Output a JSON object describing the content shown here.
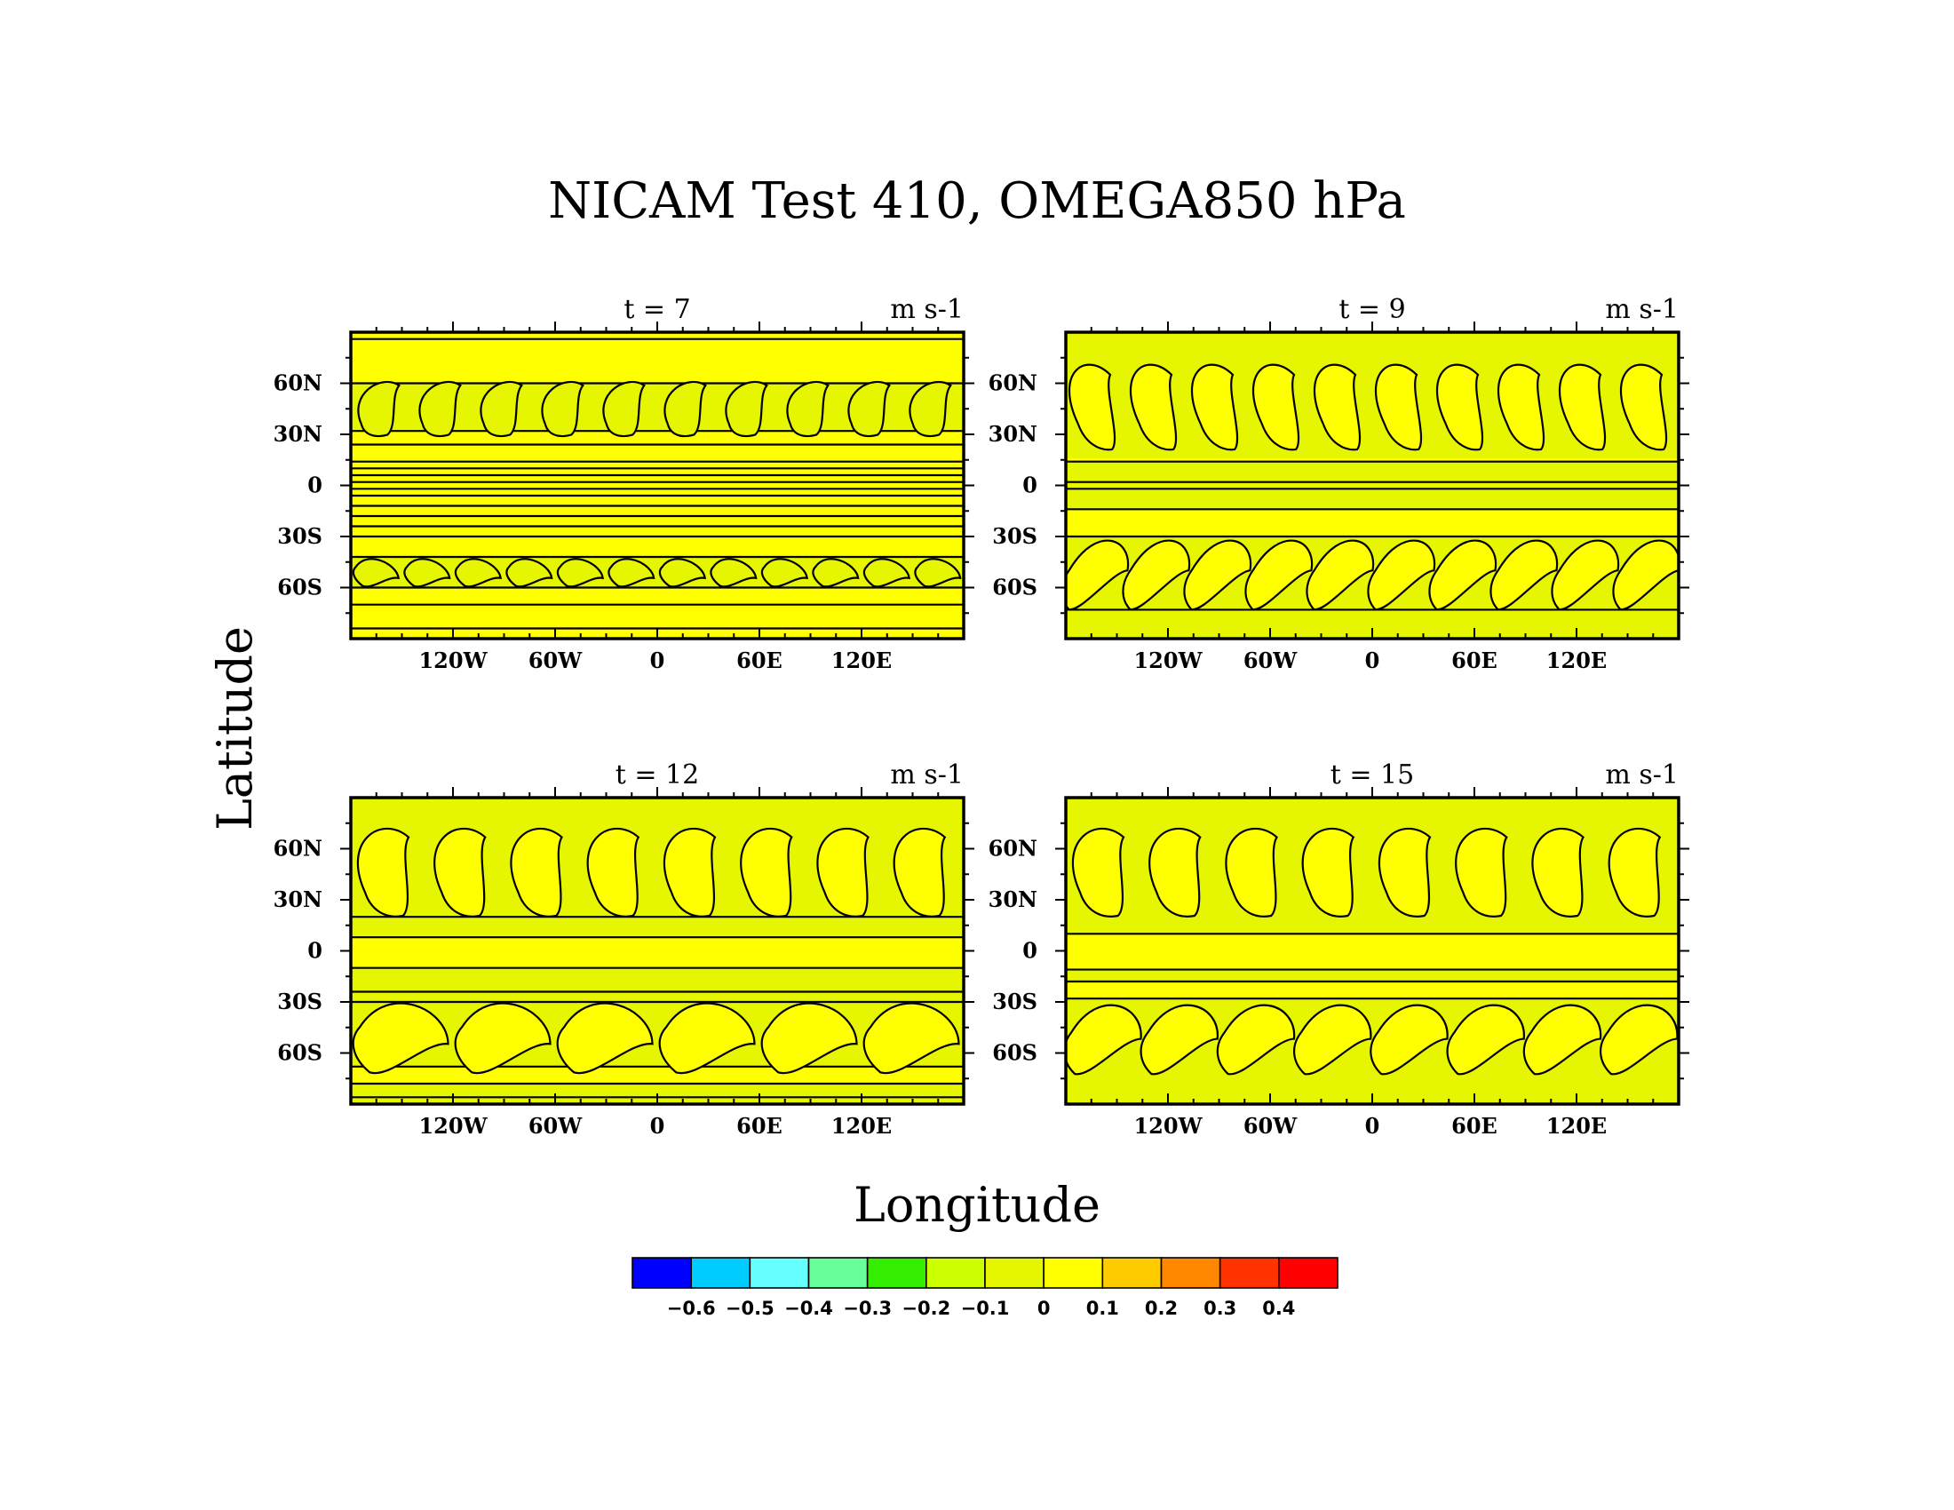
{
  "title": "NICAM Test 410, OMEGA850 hPa",
  "xlabel": "Longitude",
  "ylabel": "Latitude",
  "chart_data": [
    {
      "type": "heatmap",
      "title": "t = 7",
      "units": "m s-1",
      "x_ticks": [
        "120W",
        "60W",
        "0",
        "60E",
        "120E"
      ],
      "y_ticks": [
        "60N",
        "30N",
        "0",
        "30S",
        "60S"
      ],
      "xlim": [
        -180,
        180
      ],
      "ylim": [
        -90,
        90
      ],
      "fill_color": "#ffff00",
      "regions": [
        {
          "lat_range": [
            32,
            60
          ],
          "value": -0.05,
          "feature": "midlatitude wave crests (north)"
        },
        {
          "lat_range": [
            -60,
            -42
          ],
          "value": -0.05,
          "feature": "regular wave train (south)"
        }
      ],
      "zonal_bands": [
        86,
        60,
        32,
        24,
        14,
        10,
        6,
        2,
        -2,
        -6,
        -12,
        -18,
        -24,
        -30,
        -42,
        -60,
        -70,
        -84
      ]
    },
    {
      "type": "heatmap",
      "title": "t = 9",
      "units": "m s-1",
      "x_ticks": [
        "120W",
        "60W",
        "0",
        "60E",
        "120E"
      ],
      "y_ticks": [
        "60N",
        "30N",
        "0",
        "30S",
        "60S"
      ],
      "xlim": [
        -180,
        180
      ],
      "ylim": [
        -90,
        90
      ],
      "fill_color": "#e6f500",
      "regions": [
        {
          "lat_range": [
            14,
            16
          ],
          "value": 0.05,
          "feature": "band"
        },
        {
          "lat_range": [
            -30,
            -14
          ],
          "value": 0.05,
          "feature": "subtropical band"
        }
      ],
      "zonal_bands": [
        14,
        2,
        -2,
        -14,
        -30,
        -73
      ],
      "cells_north": 10,
      "cells_south": 10
    },
    {
      "type": "heatmap",
      "title": "t = 12",
      "units": "m s-1",
      "x_ticks": [
        "120W",
        "60W",
        "0",
        "60E",
        "120E"
      ],
      "y_ticks": [
        "60N",
        "30N",
        "0",
        "30S",
        "60S"
      ],
      "xlim": [
        -180,
        180
      ],
      "ylim": [
        -90,
        90
      ],
      "fill_color": "#e6f500",
      "regions": [
        {
          "lat_range": [
            -10,
            8
          ],
          "value": 0.05,
          "feature": "equatorial band"
        },
        {
          "lat_range": [
            -78,
            -68
          ],
          "value": 0.05,
          "feature": "polar band"
        }
      ],
      "zonal_bands": [
        20,
        8,
        -10,
        -24,
        -30,
        -68,
        -78,
        -86
      ],
      "cells_north": 8,
      "cells_south": 6
    },
    {
      "type": "heatmap",
      "title": "t = 15",
      "units": "m s-1",
      "x_ticks": [
        "120W",
        "60W",
        "0",
        "60E",
        "120E"
      ],
      "y_ticks": [
        "60N",
        "30N",
        "0",
        "30S",
        "60S"
      ],
      "xlim": [
        -180,
        180
      ],
      "ylim": [
        -90,
        90
      ],
      "fill_color": "#e6f500",
      "regions": [
        {
          "lat_range": [
            -11,
            10
          ],
          "value": 0.05,
          "feature": "equatorial band"
        },
        {
          "lat_range": [
            -28,
            -18
          ],
          "value": 0.05,
          "feature": "subtropical band"
        }
      ],
      "zonal_bands": [
        10,
        -11,
        -18,
        -28
      ],
      "cells_north": 8,
      "cells_south": 8
    }
  ],
  "colorbar": {
    "labels": [
      "-0.6",
      "-0.5",
      "-0.4",
      "-0.3",
      "-0.2",
      "-0.1",
      "0",
      "0.1",
      "0.2",
      "0.3",
      "0.4"
    ],
    "colors": [
      "#0000ff",
      "#00ccff",
      "#66ffff",
      "#66ff99",
      "#33ee00",
      "#ccff00",
      "#e6f500",
      "#ffff00",
      "#ffcc00",
      "#ff8800",
      "#ff3300",
      "#ff0000"
    ]
  }
}
